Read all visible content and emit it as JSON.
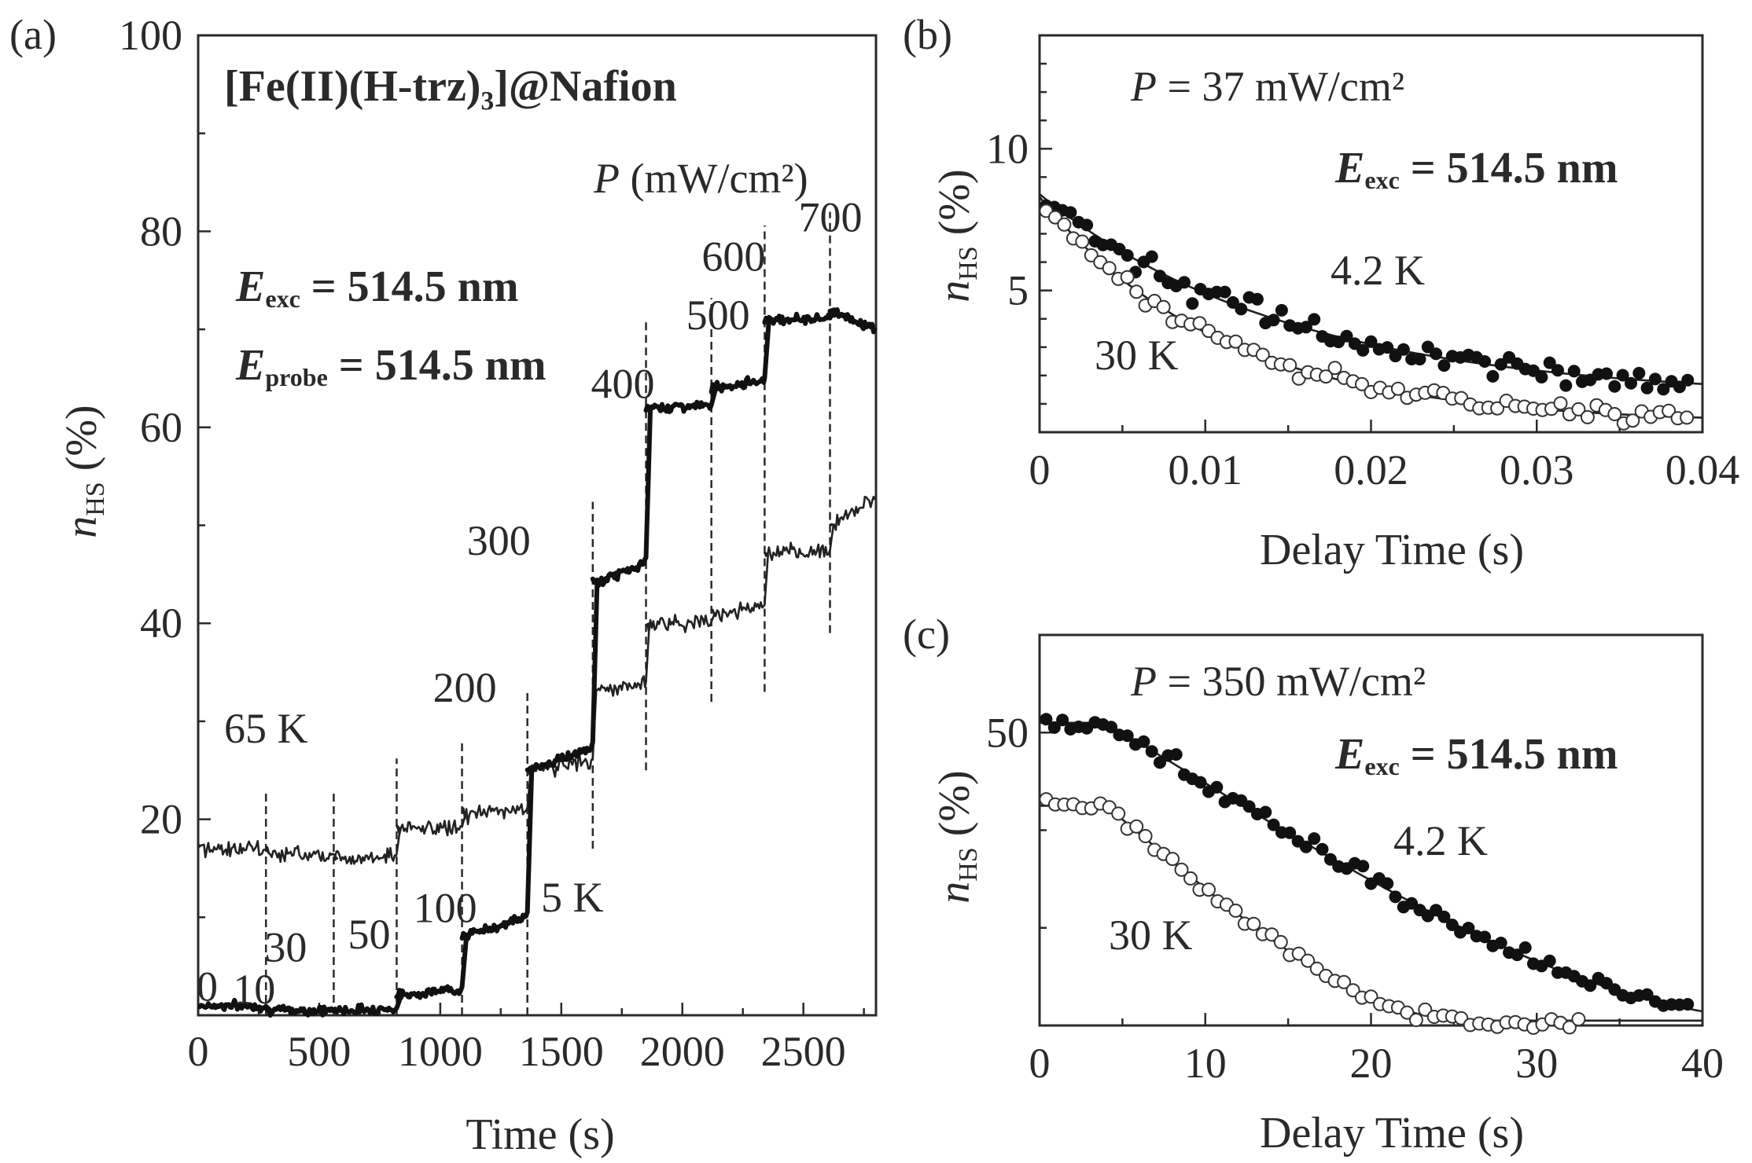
{
  "panels": {
    "a": {
      "tag": "(a)",
      "title": "[Fe(II)(H-trz)₃]@Nafion",
      "eexc": "E",
      "eexc_sub": "exc",
      "eexc_val": " = 514.5 nm",
      "eprobe": "E",
      "eprobe_sub": "probe",
      "eprobe_val": " = 514.5 nm",
      "power_header_p": "P",
      "power_header_rest": " (mW/cm²)",
      "label_65k": "65 K",
      "label_5k": "5 K",
      "xlabel": "Time (s)",
      "ylabel_n": "n",
      "ylabel_sub": "HS",
      "ylabel_rest": " (%)"
    },
    "b": {
      "tag": "(b)",
      "power_p": "P",
      "power_rest": " = 37 mW/cm²",
      "eexc": "E",
      "eexc_sub": "exc",
      "eexc_val": " = 514.5 nm",
      "label_42k": "4.2 K",
      "label_30k": "30 K",
      "xlabel": "Delay Time (s)",
      "ylabel_n": "n",
      "ylabel_sub": "HS",
      "ylabel_rest": " (%)"
    },
    "c": {
      "tag": "(c)",
      "power_p": "P",
      "power_rest": " = 350 mW/cm²",
      "eexc": "E",
      "eexc_sub": "exc",
      "eexc_val": " = 514.5 nm",
      "label_42k": "4.2 K",
      "label_30k": "30 K",
      "xlabel": "Delay Time (s)",
      "ylabel_n": "n",
      "ylabel_sub": "HS",
      "ylabel_rest": " (%)"
    }
  },
  "chart_data": [
    {
      "panel": "a",
      "type": "line",
      "title": "[Fe(II)(H-trz)3]@Nafion",
      "xlabel": "Time (s)",
      "ylabel": "nHS (%)",
      "xlim": [
        0,
        2800
      ],
      "ylim": [
        0,
        100
      ],
      "xticks": [
        0,
        500,
        1000,
        1500,
        2000,
        2500
      ],
      "yticks": [
        20,
        40,
        60,
        80,
        100
      ],
      "power_steps": [
        {
          "t": 0,
          "label": "0"
        },
        {
          "t": 280,
          "label": "10"
        },
        {
          "t": 560,
          "label": "30"
        },
        {
          "t": 820,
          "label": "50"
        },
        {
          "t": 1090,
          "label": "100"
        },
        {
          "t": 1360,
          "label": "200"
        },
        {
          "t": 1630,
          "label": "300"
        },
        {
          "t": 1850,
          "label": "400"
        },
        {
          "t": 2120,
          "label": "500"
        },
        {
          "t": 2340,
          "label": "600"
        },
        {
          "t": 2610,
          "label": "700"
        }
      ],
      "series": [
        {
          "name": "5 K",
          "style": "thick",
          "x": [
            0,
            280,
            560,
            820,
            1090,
            1360,
            1630,
            1850,
            2120,
            2340,
            2610,
            2800
          ],
          "y": [
            1,
            0.5,
            0.5,
            2,
            8,
            25,
            44,
            62,
            64,
            71,
            72,
            70
          ]
        },
        {
          "name": "65 K",
          "style": "thin",
          "x": [
            0,
            280,
            560,
            820,
            1090,
            1360,
            1630,
            1850,
            2120,
            2340,
            2610,
            2800
          ],
          "y": [
            17,
            16.5,
            16,
            19,
            20.5,
            25,
            33,
            40,
            41,
            47,
            50,
            53
          ]
        }
      ]
    },
    {
      "panel": "b",
      "type": "scatter",
      "xlabel": "Delay Time (s)",
      "ylabel": "nHS (%)",
      "xlim": [
        0,
        0.04
      ],
      "ylim": [
        0,
        14
      ],
      "xticks": [
        0,
        0.01,
        0.02,
        0.03,
        0.04
      ],
      "xtick_labels": [
        "0",
        "0.01",
        "0.02",
        "0.03",
        "0.04"
      ],
      "yticks": [
        5,
        10
      ],
      "series": [
        {
          "name": "4.2 K",
          "marker": "filled",
          "fit": {
            "a": 7.2,
            "tau": 0.015,
            "c": 1.2
          },
          "noise": 0.45
        },
        {
          "name": "30 K",
          "marker": "open",
          "fit": {
            "a": 8.0,
            "tau": 0.011,
            "c": 0.3
          },
          "noise": 0.3
        }
      ]
    },
    {
      "panel": "c",
      "type": "scatter",
      "xlabel": "Delay Time (s)",
      "ylabel": "nHS (%)",
      "xlim": [
        0,
        40
      ],
      "ylim": [
        20,
        60
      ],
      "xticks": [
        0,
        10,
        20,
        30,
        40
      ],
      "xtick_labels": [
        "0",
        "10",
        "20",
        "30",
        "40"
      ],
      "yticks": [
        50
      ],
      "series": [
        {
          "name": "4.2 K",
          "marker": "filled",
          "fit": {
            "a": 30.5,
            "t0": 4,
            "t1": 46,
            "c": 20.5
          },
          "noise": 1.0
        },
        {
          "name": "30 K",
          "marker": "open",
          "fit": {
            "a": 22,
            "t0": 4,
            "t1": 26,
            "c": 20.5
          },
          "noise": 0.7
        }
      ]
    }
  ]
}
